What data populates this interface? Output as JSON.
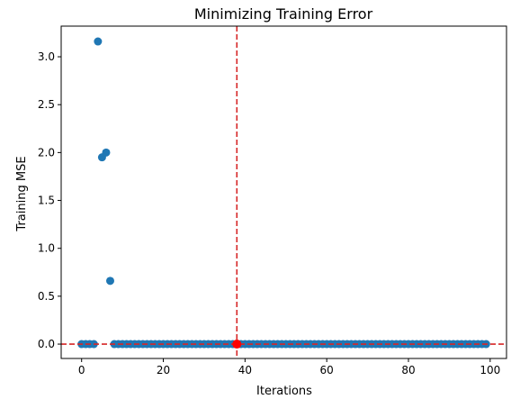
{
  "chart_data": {
    "type": "scatter",
    "title": "Minimizing Training Error",
    "xlabel": "Iterations",
    "ylabel": "Training MSE",
    "xlim": [
      -5,
      104
    ],
    "ylim": [
      -0.15,
      3.32
    ],
    "xticks": [
      0,
      20,
      40,
      60,
      80,
      100
    ],
    "yticks": [
      0.0,
      0.5,
      1.0,
      1.5,
      2.0,
      2.5,
      3.0
    ],
    "xtick_labels": [
      "0",
      "20",
      "40",
      "60",
      "80",
      "100"
    ],
    "ytick_labels": [
      "0.0",
      "0.5",
      "1.0",
      "1.5",
      "2.0",
      "2.5",
      "3.0"
    ],
    "grid": false,
    "series": [
      {
        "color": "#1f77b4",
        "x": [
          0,
          1,
          2,
          3,
          4,
          5,
          6,
          7,
          8,
          9,
          10,
          11,
          12,
          13,
          14,
          15,
          16,
          17,
          18,
          19,
          20,
          21,
          22,
          23,
          24,
          25,
          26,
          27,
          28,
          29,
          30,
          31,
          32,
          33,
          34,
          35,
          36,
          37,
          38,
          39,
          40,
          41,
          42,
          43,
          44,
          45,
          46,
          47,
          48,
          49,
          50,
          51,
          52,
          53,
          54,
          55,
          56,
          57,
          58,
          59,
          60,
          61,
          62,
          63,
          64,
          65,
          66,
          67,
          68,
          69,
          70,
          71,
          72,
          73,
          74,
          75,
          76,
          77,
          78,
          79,
          80,
          81,
          82,
          83,
          84,
          85,
          86,
          87,
          88,
          89,
          90,
          91,
          92,
          93,
          94,
          95,
          96,
          97,
          98,
          99
        ],
        "y": [
          0,
          0,
          0,
          0,
          3.16,
          1.95,
          2.0,
          0.66,
          0,
          0,
          0,
          0,
          0,
          0,
          0,
          0,
          0,
          0,
          0,
          0,
          0,
          0,
          0,
          0,
          0,
          0,
          0,
          0,
          0,
          0,
          0,
          0,
          0,
          0,
          0,
          0,
          0,
          0,
          0,
          0,
          0,
          0,
          0,
          0,
          0,
          0,
          0,
          0,
          0,
          0,
          0,
          0,
          0,
          0,
          0,
          0,
          0,
          0,
          0,
          0,
          0,
          0,
          0,
          0,
          0,
          0,
          0,
          0,
          0,
          0,
          0,
          0,
          0,
          0,
          0,
          0,
          0,
          0,
          0,
          0,
          0,
          0,
          0,
          0,
          0,
          0,
          0,
          0,
          0,
          0,
          0,
          0,
          0,
          0,
          0,
          0,
          0,
          0,
          0,
          0
        ]
      }
    ],
    "highlight_point": {
      "x": 38,
      "y": 0,
      "color": "#ff0000"
    },
    "reference_lines": [
      {
        "orientation": "vertical",
        "value": 38,
        "color": "#d62728",
        "style": "dashed"
      },
      {
        "orientation": "horizontal",
        "value": 0,
        "color": "#d62728",
        "style": "dashed"
      }
    ]
  }
}
